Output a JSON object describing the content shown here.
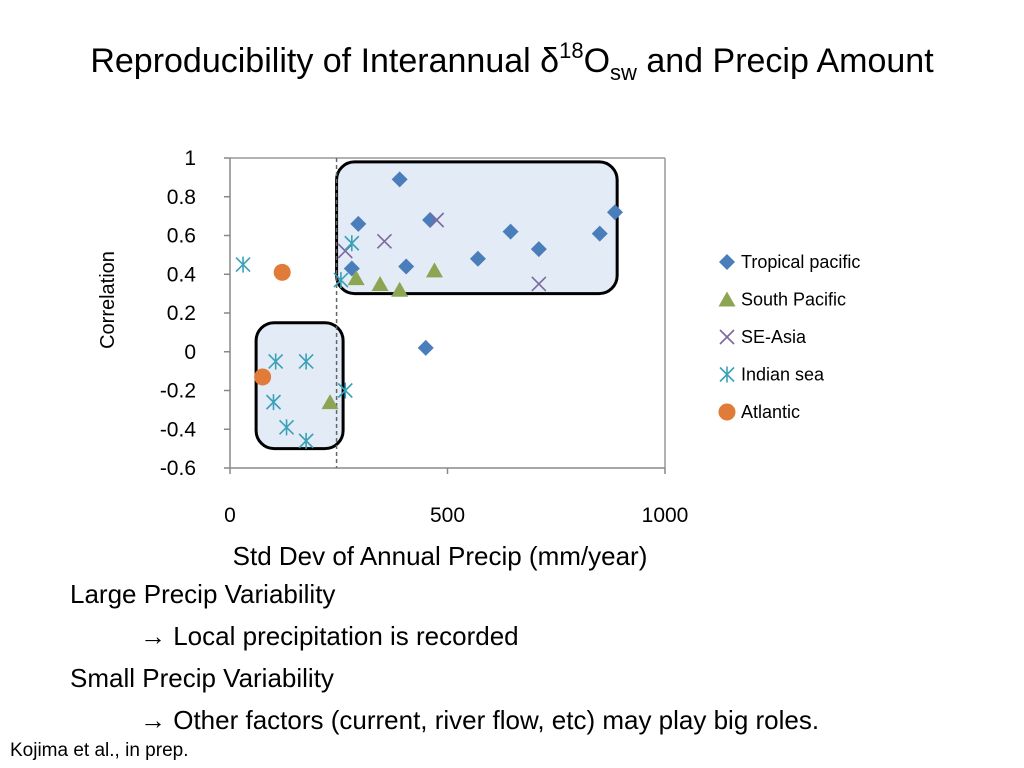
{
  "slide": {
    "title": {
      "pre": "Reproducibility of Interannual δ",
      "sup": "18",
      "mid": "O",
      "sub": "sw",
      "post": " and Precip Amount"
    },
    "bullets": [
      {
        "text": "Large Precip Variability",
        "indent": 0
      },
      {
        "text": "→ Local precipitation is recorded",
        "indent": 1
      },
      {
        "text": "Small Precip Variability",
        "indent": 0
      },
      {
        "text": "→ Other factors (current, river flow, etc) may play big roles.",
        "indent": 1
      }
    ],
    "citation": "Kojima et al., in prep."
  },
  "chart_data": {
    "type": "scatter",
    "xlabel": "Std Dev of Annual Precip (mm/year)",
    "ylabel": "Correlation",
    "xlim": [
      0,
      1000
    ],
    "ylim": [
      -0.6,
      1
    ],
    "xticks": [
      0,
      500,
      1000
    ],
    "yticks": [
      1,
      0.8,
      0.6,
      0.4,
      0.2,
      0,
      -0.2,
      -0.4,
      -0.6
    ],
    "grid": false,
    "legend_position": "right",
    "threshold_x": 245,
    "highlight_regions": [
      {
        "x": [
          245,
          890
        ],
        "y": [
          0.3,
          0.98
        ]
      },
      {
        "x": [
          60,
          260
        ],
        "y": [
          -0.5,
          0.15
        ]
      }
    ],
    "series": [
      {
        "name": "Tropical pacific",
        "marker": "diamond",
        "color": "#4a7ebb",
        "points": [
          [
            390,
            0.89
          ],
          [
            460,
            0.68
          ],
          [
            295,
            0.66
          ],
          [
            645,
            0.62
          ],
          [
            710,
            0.53
          ],
          [
            850,
            0.61
          ],
          [
            885,
            0.72
          ],
          [
            570,
            0.48
          ],
          [
            405,
            0.44
          ],
          [
            280,
            0.43
          ],
          [
            450,
            0.02
          ]
        ]
      },
      {
        "name": "South Pacific",
        "marker": "triangle",
        "color": "#8ba552",
        "points": [
          [
            470,
            0.42
          ],
          [
            290,
            0.38
          ],
          [
            345,
            0.35
          ],
          [
            390,
            0.32
          ],
          [
            230,
            -0.26
          ]
        ]
      },
      {
        "name": "SE-Asia",
        "marker": "x",
        "color": "#7a68a0",
        "points": [
          [
            475,
            0.68
          ],
          [
            355,
            0.57
          ],
          [
            265,
            0.52
          ],
          [
            710,
            0.35
          ]
        ]
      },
      {
        "name": "Indian sea",
        "marker": "asterisk",
        "color": "#3aa1b8",
        "points": [
          [
            30,
            0.45
          ],
          [
            280,
            0.56
          ],
          [
            255,
            0.37
          ],
          [
            105,
            -0.05
          ],
          [
            175,
            -0.05
          ],
          [
            265,
            -0.2
          ],
          [
            100,
            -0.26
          ],
          [
            130,
            -0.39
          ],
          [
            175,
            -0.46
          ]
        ]
      },
      {
        "name": "Atlantic",
        "marker": "circle",
        "color": "#e07b39",
        "points": [
          [
            120,
            0.41
          ],
          [
            75,
            -0.13
          ]
        ]
      }
    ]
  }
}
